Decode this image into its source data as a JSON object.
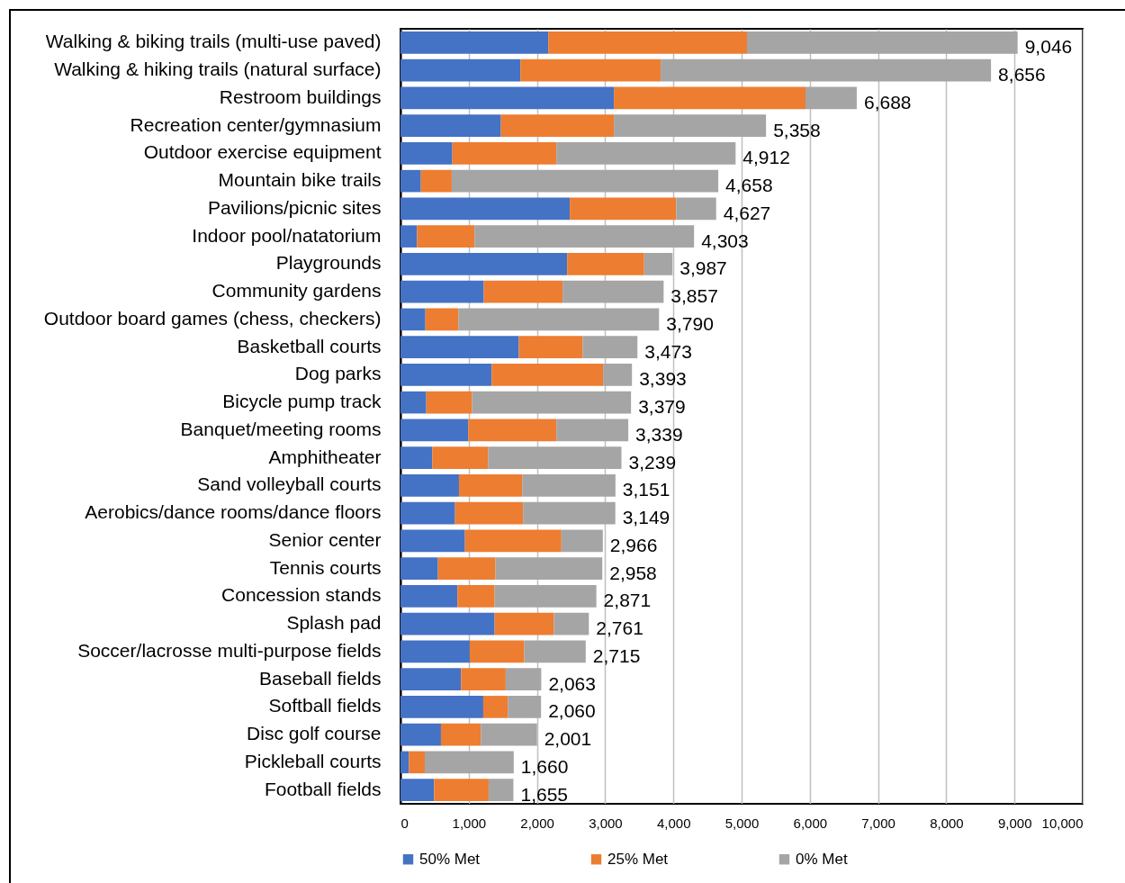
{
  "chart_data": {
    "type": "bar",
    "orientation": "horizontal",
    "stacked": true,
    "categories": [
      "Walking & biking trails (multi-use paved)",
      "Walking & hiking trails (natural surface)",
      "Restroom buildings",
      "Recreation center/gymnasium",
      "Outdoor exercise equipment",
      "Mountain bike trails",
      "Pavilions/picnic sites",
      "Indoor pool/natatorium",
      "Playgrounds",
      "Community gardens",
      "Outdoor board games (chess, checkers)",
      "Basketball courts",
      "Dog parks",
      "Bicycle pump track",
      "Banquet/meeting rooms",
      "Amphitheater",
      "Sand volleyball courts",
      "Aerobics/dance rooms/dance floors",
      "Senior center",
      "Tennis courts",
      "Concession stands",
      "Splash pad",
      "Soccer/lacrosse multi-purpose fields",
      "Baseball fields",
      "Softball fields",
      "Disc golf course",
      "Pickleball courts",
      "Football fields"
    ],
    "series": [
      {
        "name": "50% Met",
        "color": "#4472c4",
        "values": [
          2166,
          1757,
          3128,
          1472,
          760,
          299,
          2482,
          242,
          2443,
          1221,
          365,
          1735,
          1336,
          378,
          993,
          466,
          857,
          800,
          945,
          549,
          835,
          1380,
          1015,
          888,
          1213,
          593,
          123,
          492
        ]
      },
      {
        "name": "25% Met",
        "color": "#ed7d31",
        "values": [
          2913,
          2057,
          2809,
          1656,
          1525,
          452,
          1560,
          843,
          1129,
          1156,
          483,
          936,
          1634,
          672,
          1292,
          817,
          927,
          997,
          1414,
          844,
          545,
          870,
          800,
          654,
          360,
          585,
          233,
          800
        ]
      },
      {
        "name": "0% Met",
        "color": "#a5a5a5",
        "values": [
          3967,
          4842,
          751,
          2230,
          2627,
          3907,
          585,
          3218,
          415,
          1480,
          2942,
          802,
          423,
          2329,
          1054,
          1956,
          1367,
          1352,
          607,
          1565,
          1491,
          511,
          900,
          521,
          487,
          823,
          1304,
          363
        ]
      }
    ],
    "totals": [
      "9,046",
      "8,656",
      "6,688",
      "5,358",
      "4,912",
      "4,658",
      "4,627",
      "4,303",
      "3,987",
      "3,857",
      "3,790",
      "3,473",
      "3,393",
      "3,379",
      "3,339",
      "3,239",
      "3,151",
      "3,149",
      "2,966",
      "2,958",
      "2,871",
      "2,761",
      "2,715",
      "2,063",
      "2,060",
      "2,001",
      "1,660",
      "1,655"
    ],
    "xlim": [
      0,
      10000
    ],
    "xticks": [
      0,
      {
        "value": 1000,
        "label": "1,000"
      },
      {
        "value": 2000,
        "label": "2,000"
      },
      {
        "value": 3000,
        "label": "3,000"
      },
      {
        "value": 4000,
        "label": "4,000"
      },
      {
        "value": 5000,
        "label": "5,000"
      },
      {
        "value": 6000,
        "label": "6,000"
      },
      {
        "value": 7000,
        "label": "7,000"
      },
      {
        "value": 8000,
        "label": "8,000"
      },
      {
        "value": 9000,
        "label": "9,000"
      },
      {
        "value": 10000,
        "label": "10,000"
      }
    ],
    "grid": "x",
    "legend": "bottom"
  }
}
